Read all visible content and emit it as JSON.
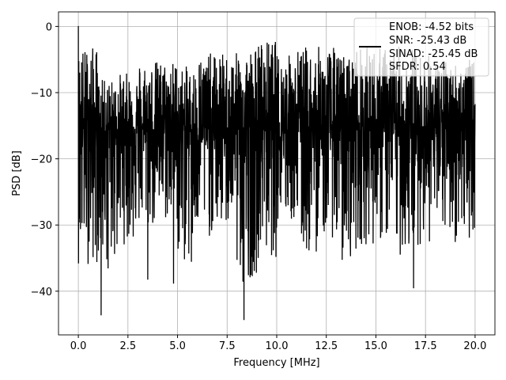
{
  "chart_data": {
    "type": "line",
    "title": "",
    "xlabel": "Frequency [MHz]",
    "ylabel": "PSD [dB]",
    "xlim": [
      -1.0,
      21.0
    ],
    "ylim": [
      -46.6,
      2.2
    ],
    "grid": true,
    "x_ticks": [
      "0.0",
      "2.5",
      "5.0",
      "7.5",
      "10.0",
      "12.5",
      "15.0",
      "17.5",
      "20.0"
    ],
    "x_tick_values": [
      0,
      2.5,
      5,
      7.5,
      10,
      12.5,
      15,
      17.5,
      20
    ],
    "y_ticks": [
      "0",
      "−10",
      "−20",
      "−30",
      "−40"
    ],
    "y_tick_values": [
      0,
      -10,
      -20,
      -30,
      -40
    ],
    "series": [
      {
        "name": "ENOB: -4.52 bits\nSNR: -25.43 dB\nSINAD: -25.45 dB\nSFDR: 0.54",
        "color": "#000000",
        "band_centers_mhz": [
          0.5,
          1.5,
          2.5,
          3.5,
          4.5,
          5.5,
          6.5,
          7.5,
          8.5,
          9.5,
          10.5,
          11.5,
          12.5,
          13.5,
          14.5,
          15.5,
          16.5,
          17.5,
          18.5,
          19.5
        ],
        "band_upper_db": [
          -3,
          -8,
          -7,
          -5,
          -5,
          -6,
          -4,
          -4,
          -3,
          -2,
          -4,
          -3,
          -3,
          -4,
          -3,
          -3,
          -3,
          -4,
          -5,
          -5
        ],
        "band_lower_db": [
          -36,
          -36,
          -33,
          -31,
          -30,
          -36,
          -32,
          -31,
          -38,
          -35,
          -30,
          -35,
          -32,
          -35,
          -33,
          -33,
          -35,
          -33,
          -32,
          -32
        ],
        "notable_points": [
          {
            "x": 0.0,
            "y": 0.0
          },
          {
            "x": 1.15,
            "y": -43.6
          },
          {
            "x": 1.5,
            "y": -36.5
          },
          {
            "x": 3.5,
            "y": -38.2
          },
          {
            "x": 4.8,
            "y": -38.8
          },
          {
            "x": 5.7,
            "y": -35.5
          },
          {
            "x": 8.3,
            "y": -38.5
          },
          {
            "x": 8.35,
            "y": -44.3
          },
          {
            "x": 8.7,
            "y": -37.5
          },
          {
            "x": 13.3,
            "y": -35.2
          },
          {
            "x": 16.9,
            "y": -39.5
          },
          {
            "x": 19.0,
            "y": -32.5
          }
        ]
      }
    ],
    "legend": {
      "placement": "top-right",
      "lines": [
        "ENOB: -4.52 bits",
        "SNR: -25.43 dB",
        "SINAD: -25.45 dB",
        "SFDR: 0.54"
      ]
    }
  }
}
